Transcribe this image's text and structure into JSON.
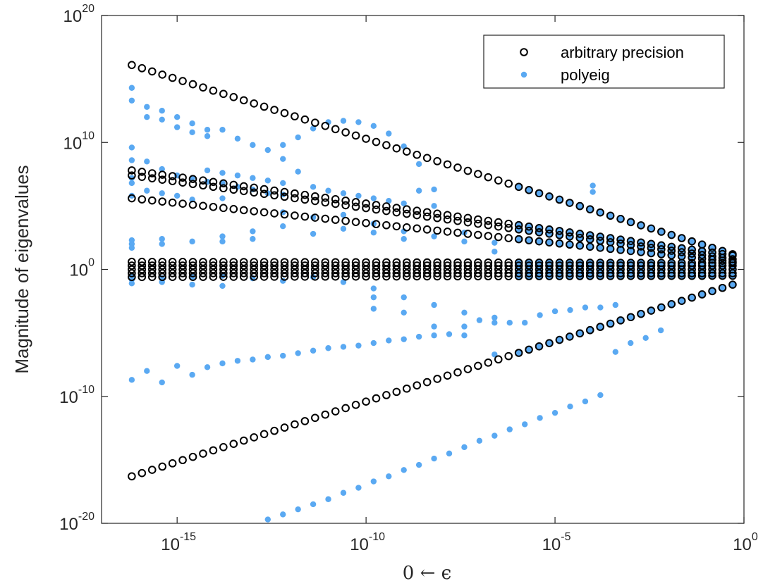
{
  "chart_data": {
    "type": "scatter",
    "title": "",
    "xlabel": "0 ← ϵ",
    "ylabel": "Magnitude of eigenvalues",
    "xscale": "log",
    "yscale": "log",
    "xlim": [
      1e-17,
      1
    ],
    "ylim": [
      1e-20,
      1e+20
    ],
    "grid": false,
    "legend_location": "top-right",
    "x_ticks": [
      {
        "base": "10",
        "exp": "-15",
        "value": 1e-15
      },
      {
        "base": "10",
        "exp": "-10",
        "value": 1e-10
      },
      {
        "base": "10",
        "exp": "-5",
        "value": 1e-05
      },
      {
        "base": "10",
        "exp": "0",
        "value": 1
      }
    ],
    "y_ticks": [
      {
        "base": "10",
        "exp": "-20",
        "value": 1e-20
      },
      {
        "base": "10",
        "exp": "-10",
        "value": 1e-10
      },
      {
        "base": "10",
        "exp": "0",
        "value": 1
      },
      {
        "base": "10",
        "exp": "10",
        "value": 10000000000.0
      },
      {
        "base": "10",
        "exp": "20",
        "value": 1e+20
      }
    ],
    "series": [
      {
        "name": "arbitrary precision",
        "marker": "open-circle",
        "color": "#000000",
        "x_log10_range": [
          -16.2,
          -0.3
        ],
        "x_count": 60,
        "branches": [
          {
            "log10_y_start": 16.1,
            "log10_y_end": 1.2
          },
          {
            "log10_y_start": 7.8,
            "log10_y_end": 1.1
          },
          {
            "log10_y_start": 7.4,
            "log10_y_end": 0.8
          },
          {
            "log10_y_start": 5.6,
            "log10_y_end": 0.6
          },
          {
            "log10_y_start": 0.6,
            "log10_y_end": 0.5
          },
          {
            "log10_y_start": 0.3,
            "log10_y_end": 0.3
          },
          {
            "log10_y_start": 0.0,
            "log10_y_end": 0.0
          },
          {
            "log10_y_start": -0.3,
            "log10_y_end": -0.3
          },
          {
            "log10_y_start": -0.6,
            "log10_y_end": -0.5
          },
          {
            "log10_y_start": -16.3,
            "log10_y_end": -1.2
          }
        ]
      },
      {
        "name": "polyeig",
        "marker": "filled-dot",
        "color": "#5aa9f2",
        "matching_from_log10_x": -6.0,
        "points_log10": [
          [
            -16.2,
            14.3
          ],
          [
            -16.2,
            13.3
          ],
          [
            -16.2,
            9.6
          ],
          [
            -16.2,
            8.6
          ],
          [
            -16.2,
            7.2
          ],
          [
            -16.2,
            6.8
          ],
          [
            -16.2,
            5.8
          ],
          [
            -15.8,
            12.8
          ],
          [
            -15.8,
            12.0
          ],
          [
            -15.8,
            8.5
          ],
          [
            -15.8,
            6.2
          ],
          [
            -15.4,
            12.5
          ],
          [
            -15.4,
            11.8
          ],
          [
            -15.4,
            7.9
          ],
          [
            -15.4,
            6.0
          ],
          [
            -15.0,
            12.0
          ],
          [
            -15.0,
            11.2
          ],
          [
            -15.0,
            7.4
          ],
          [
            -15.0,
            5.8
          ],
          [
            -14.6,
            11.5
          ],
          [
            -14.6,
            10.8
          ],
          [
            -14.6,
            7.2
          ],
          [
            -14.6,
            5.5
          ],
          [
            -14.2,
            11.0
          ],
          [
            -14.2,
            10.5
          ],
          [
            -14.2,
            7.8
          ],
          [
            -14.2,
            6.9
          ],
          [
            -13.8,
            11.0
          ],
          [
            -13.8,
            7.6
          ],
          [
            -13.8,
            6.8
          ],
          [
            -13.8,
            5.6
          ],
          [
            -13.4,
            10.3
          ],
          [
            -13.4,
            7.4
          ],
          [
            -13.4,
            6.5
          ],
          [
            -13.0,
            9.8
          ],
          [
            -13.0,
            7.2
          ],
          [
            -13.0,
            6.3
          ],
          [
            -12.6,
            9.4
          ],
          [
            -12.6,
            7.0
          ],
          [
            -12.6,
            6.0
          ],
          [
            -12.2,
            9.8
          ],
          [
            -12.2,
            8.7
          ],
          [
            -12.2,
            6.8
          ],
          [
            -12.2,
            5.9
          ],
          [
            -11.8,
            10.4
          ],
          [
            -11.8,
            7.7
          ],
          [
            -11.4,
            11.1
          ],
          [
            -11.4,
            6.5
          ],
          [
            -11.0,
            11.6
          ],
          [
            -11.0,
            6.2
          ],
          [
            -10.6,
            11.7
          ],
          [
            -10.6,
            6.0
          ],
          [
            -10.2,
            11.6
          ],
          [
            -10.2,
            5.8
          ],
          [
            -9.8,
            11.3
          ],
          [
            -9.8,
            5.6
          ],
          [
            -9.4,
            10.7
          ],
          [
            -9.4,
            5.4
          ],
          [
            -9.0,
            9.7
          ],
          [
            -9.0,
            5.2
          ],
          [
            -8.6,
            8.3
          ],
          [
            -8.6,
            6.2
          ],
          [
            -8.2,
            6.3
          ],
          [
            -8.2,
            5.0
          ],
          [
            -4.0,
            6.6
          ],
          [
            -4.0,
            6.1
          ],
          [
            -16.2,
            2.3
          ],
          [
            -16.2,
            2.0
          ],
          [
            -16.2,
            1.7
          ],
          [
            -16.2,
            -0.5
          ],
          [
            -16.2,
            -0.8
          ],
          [
            -16.2,
            -1.1
          ],
          [
            -15.4,
            2.4
          ],
          [
            -15.4,
            2.0
          ],
          [
            -15.4,
            -0.7
          ],
          [
            -15.4,
            -1.0
          ],
          [
            -14.6,
            2.2
          ],
          [
            -14.6,
            -0.6
          ],
          [
            -14.6,
            -1.2
          ],
          [
            -13.8,
            2.6
          ],
          [
            -13.8,
            2.2
          ],
          [
            -13.8,
            -0.5
          ],
          [
            -13.8,
            -1.3
          ],
          [
            -13.0,
            3.0
          ],
          [
            -13.0,
            2.4
          ],
          [
            -13.0,
            -0.7
          ],
          [
            -12.2,
            4.5
          ],
          [
            -12.2,
            3.4
          ],
          [
            -12.2,
            -0.9
          ],
          [
            -11.4,
            4.1
          ],
          [
            -11.4,
            2.8
          ],
          [
            -11.4,
            -0.6
          ],
          [
            -10.6,
            4.3
          ],
          [
            -10.6,
            3.2
          ],
          [
            -10.6,
            -1.0
          ],
          [
            -9.8,
            3.6
          ],
          [
            -9.8,
            2.9
          ],
          [
            -9.8,
            -1.5
          ],
          [
            -9.8,
            -2.2
          ],
          [
            -9.8,
            -3.1
          ],
          [
            -9.0,
            3.0
          ],
          [
            -9.0,
            2.4
          ],
          [
            -9.0,
            -2.2
          ],
          [
            -9.0,
            -3.4
          ],
          [
            -8.2,
            2.6
          ],
          [
            -8.2,
            -2.8
          ],
          [
            -8.2,
            -4.5
          ],
          [
            -7.4,
            2.9
          ],
          [
            -7.4,
            2.2
          ],
          [
            -7.4,
            -3.4
          ],
          [
            -7.4,
            -5.2
          ],
          [
            -6.6,
            2.1
          ],
          [
            -6.6,
            1.4
          ],
          [
            -6.6,
            -4.2
          ],
          [
            -6.6,
            -6.7
          ],
          [
            -16.2,
            -8.7
          ],
          [
            -15.8,
            -8.0
          ],
          [
            -15.4,
            -8.9
          ],
          [
            -15.0,
            -7.6
          ],
          [
            -14.6,
            -8.3
          ],
          [
            -14.2,
            -7.7
          ],
          [
            -13.8,
            -7.4
          ],
          [
            -13.4,
            -7.2
          ],
          [
            -13.0,
            -7.1
          ],
          [
            -12.6,
            -6.9
          ],
          [
            -12.2,
            -6.8
          ],
          [
            -11.8,
            -6.6
          ],
          [
            -11.4,
            -6.4
          ],
          [
            -11.0,
            -6.2
          ],
          [
            -10.6,
            -6.1
          ],
          [
            -10.2,
            -6.0
          ],
          [
            -9.8,
            -5.8
          ],
          [
            -9.4,
            -5.6
          ],
          [
            -9.0,
            -5.5
          ],
          [
            -8.6,
            -5.3
          ],
          [
            -8.2,
            -5.2
          ],
          [
            -7.8,
            -5.1
          ],
          [
            -7.4,
            -4.5
          ],
          [
            -7.0,
            -4.0
          ],
          [
            -6.6,
            -3.8
          ],
          [
            -6.2,
            -4.2
          ],
          [
            -5.8,
            -4.2
          ],
          [
            -5.4,
            -3.6
          ],
          [
            -5.0,
            -3.3
          ],
          [
            -4.6,
            -3.2
          ],
          [
            -4.2,
            -3.0
          ],
          [
            -3.8,
            -3.0
          ],
          [
            -3.4,
            -2.8
          ],
          [
            -12.6,
            -19.7
          ],
          [
            -12.2,
            -19.3
          ],
          [
            -11.8,
            -18.9
          ],
          [
            -11.4,
            -18.5
          ],
          [
            -11.0,
            -18.1
          ],
          [
            -10.6,
            -17.6
          ],
          [
            -10.2,
            -17.2
          ],
          [
            -9.8,
            -16.7
          ],
          [
            -9.4,
            -16.3
          ],
          [
            -9.0,
            -15.8
          ],
          [
            -8.6,
            -15.4
          ],
          [
            -8.2,
            -14.9
          ],
          [
            -7.8,
            -14.5
          ],
          [
            -7.4,
            -14.0
          ],
          [
            -7.0,
            -13.5
          ],
          [
            -6.6,
            -13.1
          ],
          [
            -6.2,
            -12.6
          ],
          [
            -5.8,
            -12.2
          ],
          [
            -5.4,
            -11.7
          ],
          [
            -5.0,
            -11.3
          ],
          [
            -4.6,
            -10.8
          ],
          [
            -4.2,
            -10.4
          ],
          [
            -3.8,
            -9.9
          ],
          [
            -3.4,
            -6.5
          ],
          [
            -3.0,
            -5.8
          ],
          [
            -2.6,
            -5.4
          ],
          [
            -2.2,
            -4.8
          ]
        ]
      }
    ]
  }
}
